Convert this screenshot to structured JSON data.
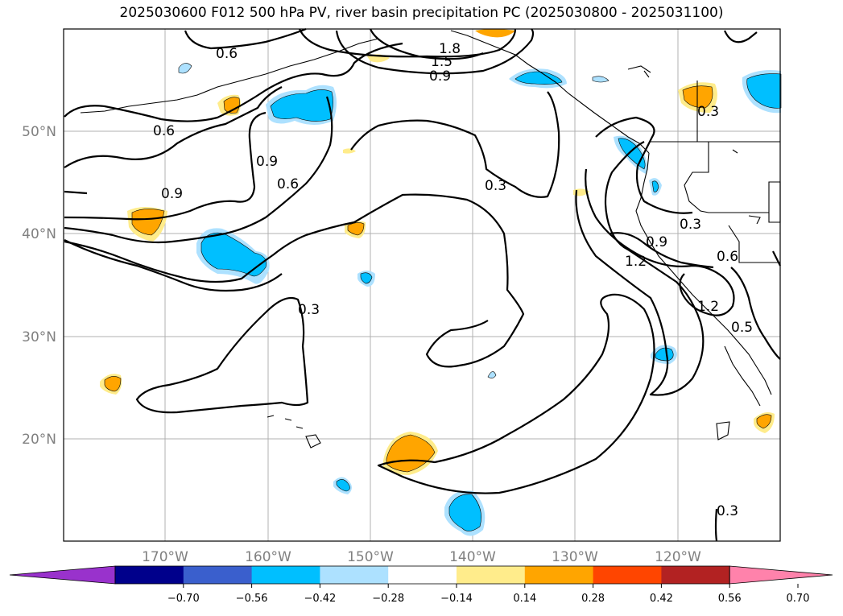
{
  "title": "2025030600 F012 500 hPa PV, river basin precipitation PC (2025030800 - 2025031100)",
  "map": {
    "lat_labels": [
      "50°N",
      "40°N",
      "30°N",
      "20°N"
    ],
    "lon_labels": [
      "170°W",
      "160°W",
      "150°W",
      "140°W",
      "130°W",
      "120°W"
    ]
  },
  "contour_labels": [
    "0.6",
    "1.8",
    "1.5",
    "0.9",
    "0.6",
    "0.9",
    "0.6",
    "0.9",
    "0.3",
    "0.3",
    "0.3",
    "0.9",
    "1.2",
    "0.6",
    "1.2",
    "0.5",
    "0.3",
    "0.3"
  ],
  "colorbar": {
    "tick_labels": [
      "−0.70",
      "−0.56",
      "−0.42",
      "−0.28",
      "−0.14",
      "0.14",
      "0.28",
      "0.42",
      "0.56",
      "0.70"
    ],
    "colors": [
      "#9932CC",
      "#00008B",
      "#3A5FCD",
      "#00BFFF",
      "#ADE1FF",
      "#FFFFFF",
      "#FFEC8B",
      "#FFA500",
      "#FF4500",
      "#B22222",
      "#FF82AB"
    ]
  }
}
